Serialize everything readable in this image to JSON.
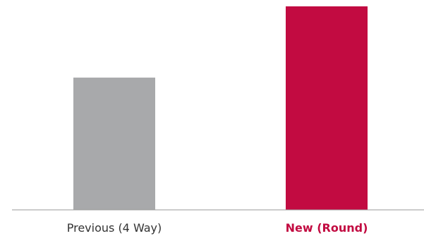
{
  "chart_data": {
    "type": "bar",
    "categories": [
      "Previous (4 Way)",
      "New (Round)"
    ],
    "values": [
      65,
      100
    ],
    "ylim": [
      0,
      100
    ],
    "grid": false,
    "bar_colors": [
      "#a8a9ab",
      "#c20b41"
    ],
    "label_colors": [
      "#333333",
      "#c20b41"
    ],
    "label_bold": [
      false,
      true
    ],
    "axis_color": "#9a9a9a"
  }
}
